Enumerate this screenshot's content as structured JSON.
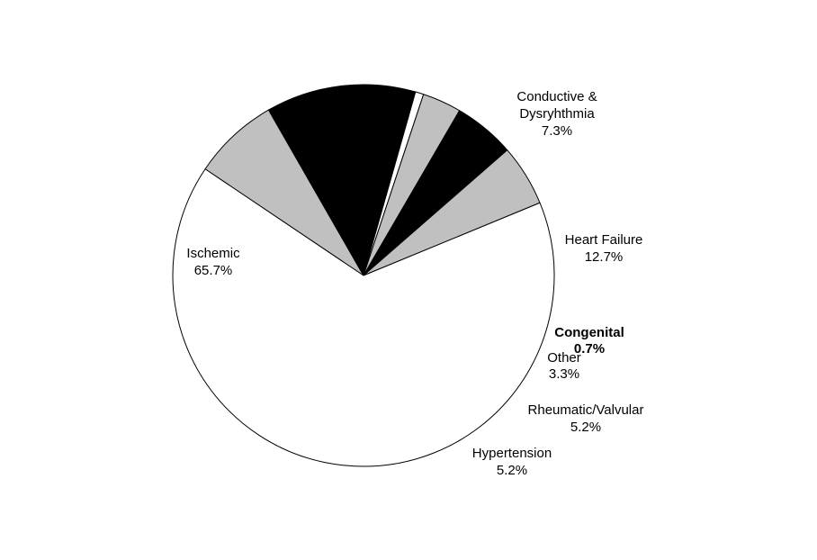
{
  "chart_data": {
    "type": "pie",
    "title": "",
    "start_angle_deg": -56.1,
    "direction": "clockwise",
    "slices": [
      {
        "name": "Conductive &",
        "name2": "Dysryhthmia",
        "value_label": "7.3%",
        "value": 7.3,
        "color": "#c0c0c0"
      },
      {
        "name": "Heart Failure",
        "value_label": "12.7%",
        "value": 12.7,
        "color": "#000000"
      },
      {
        "name": "Congenital",
        "value_label": "0.7%",
        "value": 0.7,
        "color": "#ffffff"
      },
      {
        "name": "Other",
        "value_label": "3.3%",
        "value": 3.3,
        "color": "#c0c0c0"
      },
      {
        "name": "Rheumatic/Valvular",
        "value_label": "5.2%",
        "value": 5.2,
        "color": "#000000"
      },
      {
        "name": "Hypertension",
        "value_label": "5.2%",
        "value": 5.2,
        "color": "#c0c0c0"
      },
      {
        "name": "Ischemic",
        "value_label": "65.7%",
        "value": 65.7,
        "color": "#ffffff"
      }
    ]
  }
}
